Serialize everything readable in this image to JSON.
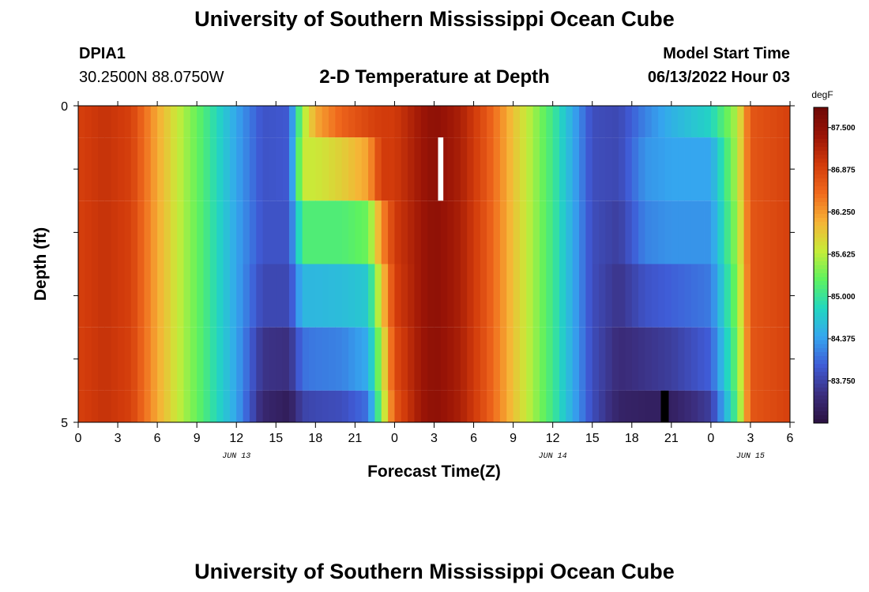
{
  "page": {
    "title": "University of Southern Mississippi Ocean Cube",
    "footer_title": "University of Southern Mississippi Ocean Cube",
    "station_id": "DPIA1",
    "station_coords": "30.2500N  88.0750W",
    "plot_title": "2-D Temperature at Depth",
    "model_start_label": "Model Start Time",
    "model_start_value": "06/13/2022 Hour 03"
  },
  "chart_data": {
    "type": "heatmap",
    "xlabel": "Forecast Time(Z)",
    "ylabel": "Depth (ft)",
    "x_tick_labels": [
      "0",
      "3",
      "6",
      "9",
      "12",
      "15",
      "18",
      "21",
      "0",
      "3",
      "6",
      "9",
      "12",
      "15",
      "18",
      "21",
      "0",
      "3",
      "6"
    ],
    "x_hours": [
      0,
      54
    ],
    "date_labels": [
      {
        "text": "JUN 13",
        "hour": 12
      },
      {
        "text": "JUN 14",
        "hour": 36
      },
      {
        "text": "JUN 15",
        "hour": 51
      }
    ],
    "y_tick_labels": [
      {
        "text": "0",
        "depth": 0
      },
      {
        "text": "5",
        "depth": 5
      }
    ],
    "ylim": [
      0,
      5
    ],
    "depth_layers": [
      0,
      1,
      2,
      3,
      4,
      5
    ],
    "colorbar": {
      "unit": "degF",
      "min": 83.125,
      "max": 87.8,
      "ticks": [
        "87.500",
        "86.875",
        "86.250",
        "85.625",
        "85.000",
        "84.375",
        "83.750"
      ],
      "tick_values": [
        87.5,
        86.875,
        86.25,
        85.625,
        85.0,
        84.375,
        83.75
      ],
      "colors": [
        "#2b1140",
        "#3b2e7e",
        "#3f5bd6",
        "#35a6ef",
        "#22d7c0",
        "#5ef25f",
        "#c7ec38",
        "#f6b336",
        "#f06a1d",
        "#d23b0b",
        "#9a1406",
        "#6d0806"
      ]
    },
    "series_hour": [
      0,
      2,
      4,
      6,
      8,
      10,
      12,
      14,
      16,
      17,
      18,
      20,
      22,
      23,
      24,
      26,
      27,
      29,
      31,
      33,
      36,
      38,
      39,
      41,
      43,
      45,
      48,
      50,
      51,
      54
    ],
    "temperature_by_layer": [
      {
        "depth_ft": 0,
        "values": [
          86.9,
          87.05,
          86.9,
          86.15,
          85.55,
          85.0,
          84.4,
          83.9,
          83.95,
          85.5,
          86.15,
          86.6,
          86.85,
          86.95,
          86.95,
          87.35,
          87.5,
          87.25,
          86.7,
          86.0,
          85.05,
          84.25,
          83.85,
          83.8,
          84.2,
          84.5,
          84.8,
          85.6,
          86.7,
          86.9
        ]
      },
      {
        "depth_ft": 1,
        "values": [
          86.9,
          87.05,
          86.9,
          86.15,
          85.55,
          85.0,
          84.4,
          83.9,
          83.95,
          85.7,
          85.7,
          85.9,
          86.2,
          86.95,
          86.95,
          87.35,
          87.5,
          87.25,
          86.7,
          86.0,
          85.05,
          84.25,
          83.85,
          83.8,
          84.3,
          84.4,
          84.4,
          85.6,
          86.7,
          86.9
        ]
      },
      {
        "depth_ft": 2,
        "values": [
          86.9,
          87.05,
          86.9,
          86.15,
          85.55,
          85.0,
          84.4,
          83.9,
          83.9,
          85.15,
          85.15,
          85.15,
          85.3,
          86.3,
          86.95,
          87.35,
          87.5,
          87.25,
          86.7,
          86.0,
          85.05,
          84.25,
          83.85,
          83.7,
          84.2,
          84.3,
          84.3,
          85.5,
          86.7,
          86.9
        ]
      },
      {
        "depth_ft": 3,
        "values": [
          86.9,
          87.05,
          86.9,
          86.15,
          85.55,
          85.0,
          84.4,
          83.8,
          83.8,
          84.55,
          84.55,
          84.6,
          84.7,
          85.9,
          86.9,
          87.35,
          87.5,
          87.25,
          86.7,
          86.0,
          85.05,
          84.25,
          83.85,
          83.6,
          83.9,
          84.0,
          84.15,
          85.4,
          86.7,
          86.9
        ]
      },
      {
        "depth_ft": 4,
        "values": [
          86.9,
          87.05,
          86.9,
          86.15,
          85.55,
          85.0,
          84.4,
          83.6,
          83.55,
          84.1,
          84.15,
          84.2,
          84.45,
          85.6,
          86.8,
          87.35,
          87.5,
          87.25,
          86.7,
          86.0,
          85.05,
          84.25,
          83.85,
          83.5,
          83.6,
          83.7,
          84.0,
          85.3,
          86.7,
          86.9
        ]
      },
      {
        "depth_ft": 5,
        "values": [
          86.9,
          87.05,
          86.9,
          86.15,
          85.55,
          85.0,
          84.4,
          83.45,
          83.3,
          83.75,
          83.8,
          83.85,
          84.1,
          85.4,
          86.7,
          87.35,
          87.5,
          87.25,
          86.7,
          86.0,
          85.05,
          84.25,
          83.85,
          83.4,
          83.35,
          83.35,
          83.7,
          85.2,
          86.7,
          86.9
        ]
      }
    ],
    "missing_cells": [
      {
        "hour_start": 27.3,
        "hour_end": 27.7,
        "depth_from": 0.5,
        "depth_to": 1.5,
        "color": "#ffffff"
      },
      {
        "hour_start": 44.2,
        "hour_end": 44.8,
        "depth_from": 4.5,
        "depth_to": 5.0,
        "color": "#000000"
      }
    ]
  }
}
